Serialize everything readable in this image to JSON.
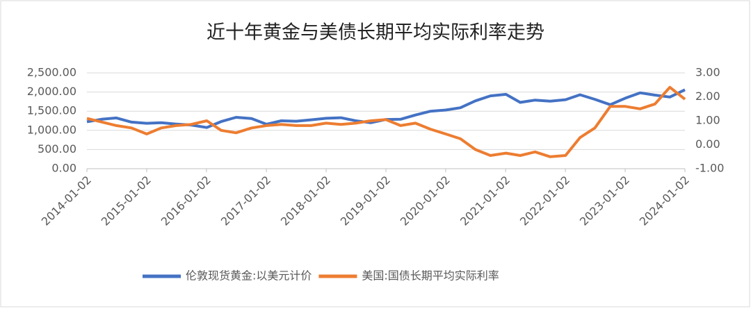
{
  "chart_data": {
    "type": "line",
    "title": "近十年黄金与美债长期平均实际利率走势",
    "x": [
      "2014-01-02",
      "2014-04-01",
      "2014-07-01",
      "2014-10-01",
      "2015-01-02",
      "2015-04-01",
      "2015-07-01",
      "2015-10-01",
      "2016-01-04",
      "2016-04-01",
      "2016-07-01",
      "2016-10-03",
      "2017-01-03",
      "2017-04-03",
      "2017-07-03",
      "2017-10-02",
      "2018-01-02",
      "2018-04-02",
      "2018-07-02",
      "2018-10-01",
      "2019-01-02",
      "2019-04-01",
      "2019-07-01",
      "2019-10-01",
      "2020-01-02",
      "2020-04-01",
      "2020-07-01",
      "2020-10-01",
      "2021-01-04",
      "2021-04-01",
      "2021-07-01",
      "2021-10-01",
      "2022-01-03",
      "2022-04-01",
      "2022-07-01",
      "2022-10-03",
      "2023-01-03",
      "2023-04-03",
      "2023-07-03",
      "2023-10-02",
      "2024-01-02"
    ],
    "series": [
      {
        "name": "伦敦现货黄金:以美元计价",
        "color": "#4472c4",
        "axis": "y",
        "values": [
          1225,
          1290,
          1325,
          1215,
          1185,
          1200,
          1165,
          1140,
          1075,
          1230,
          1340,
          1310,
          1160,
          1250,
          1240,
          1275,
          1315,
          1330,
          1250,
          1200,
          1285,
          1290,
          1400,
          1500,
          1530,
          1590,
          1770,
          1900,
          1940,
          1730,
          1790,
          1760,
          1800,
          1930,
          1810,
          1670,
          1840,
          1980,
          1920,
          1870,
          2060
        ]
      },
      {
        "name": "美国:国债长期平均实际利率",
        "color": "#ed7d31",
        "axis": "y2",
        "values": [
          1.1,
          0.95,
          0.8,
          0.7,
          0.45,
          0.7,
          0.8,
          0.85,
          1.0,
          0.6,
          0.5,
          0.7,
          0.8,
          0.85,
          0.8,
          0.8,
          0.9,
          0.85,
          0.9,
          1.0,
          1.05,
          0.8,
          0.9,
          0.65,
          0.45,
          0.25,
          -0.2,
          -0.45,
          -0.35,
          -0.45,
          -0.3,
          -0.5,
          -0.45,
          0.3,
          0.7,
          1.6,
          1.6,
          1.5,
          1.7,
          2.4,
          1.9
        ]
      }
    ],
    "xlim": [
      "2014-01-02",
      "2024-01-02"
    ],
    "xticks": [
      "2014-01-02",
      "2015-01-02",
      "2016-01-02",
      "2017-01-02",
      "2018-01-02",
      "2019-01-02",
      "2020-01-02",
      "2021-01-02",
      "2022-01-02",
      "2023-01-02",
      "2024-01-02"
    ],
    "ylim": [
      0,
      2500
    ],
    "yticks": [
      {
        "value": 0,
        "label": "0.00"
      },
      {
        "value": 500,
        "label": "500.00"
      },
      {
        "value": 1000,
        "label": "1,000.00"
      },
      {
        "value": 1500,
        "label": "1,500.00"
      },
      {
        "value": 2000,
        "label": "2,000.00"
      },
      {
        "value": 2500,
        "label": "2,500.00"
      }
    ],
    "y2lim": [
      -1,
      3
    ],
    "y2ticks": [
      {
        "value": -1,
        "label": "-1.00"
      },
      {
        "value": 0,
        "label": "0.00"
      },
      {
        "value": 1,
        "label": "1.00"
      },
      {
        "value": 2,
        "label": "2.00"
      },
      {
        "value": 3,
        "label": "3.00"
      }
    ],
    "grid": true
  }
}
